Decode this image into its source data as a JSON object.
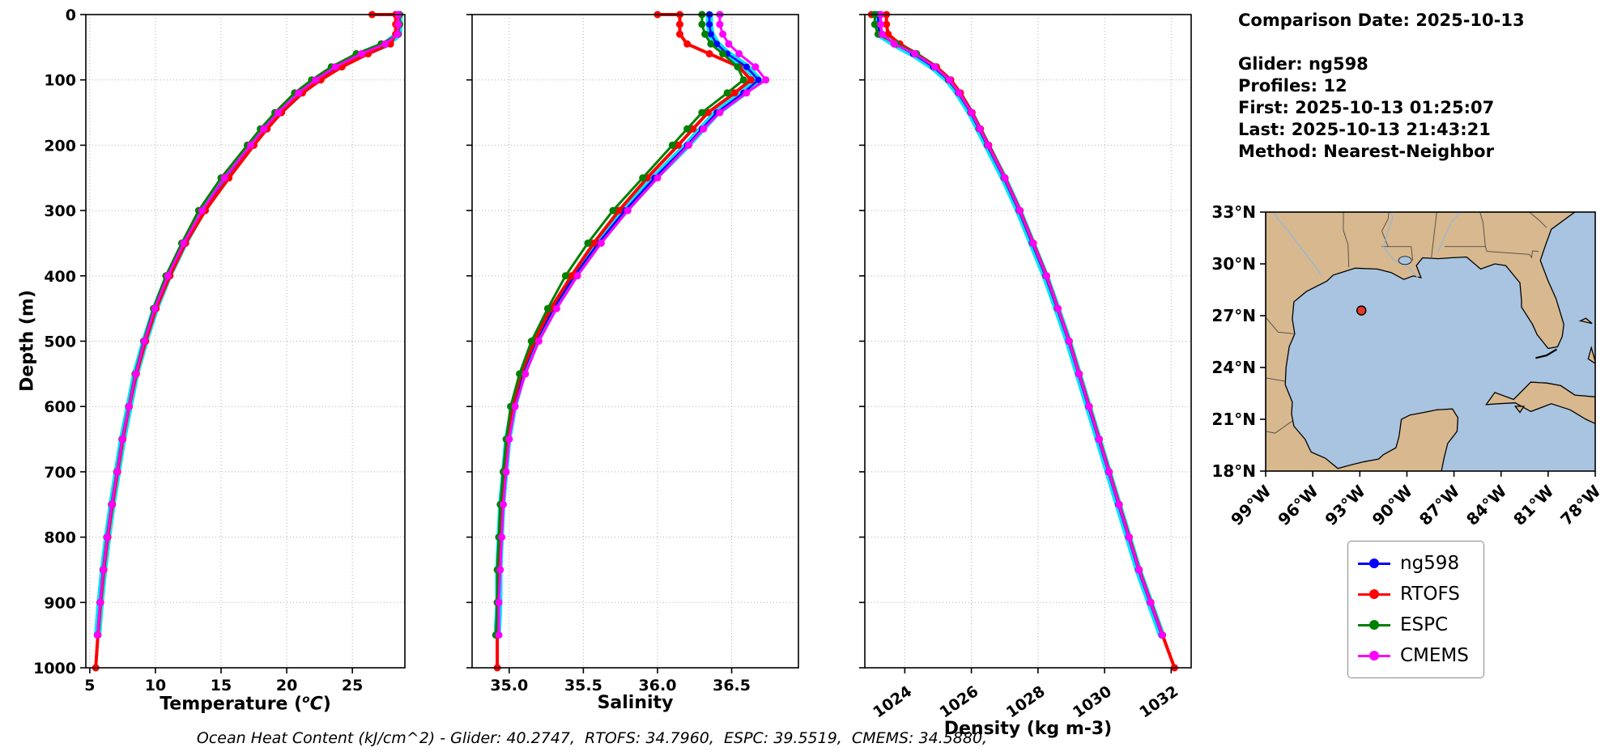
{
  "info_panel": {
    "comparison_date": "Comparison Date: 2025-10-13",
    "glider": "Glider: ng598",
    "profiles": "Profiles: 12",
    "first": "First: 2025-10-13 01:25:07",
    "last": "Last: 2025-10-13 21:43:21",
    "method": "Method: Nearest-Neighbor"
  },
  "labels": {
    "ylabel": "Depth (m)",
    "temperature_pre": "Temperature (",
    "temperature_sup": "o",
    "temperature_c": "C",
    "temperature_post": ")",
    "salinity_xlabel": "Salinity",
    "density_xlabel": "Density (kg m-3)"
  },
  "caption": "Ocean Heat Content (kJ/cm^2) - Glider: 40.2747,  RTOFS: 34.7960,  ESPC: 39.5519,  CMEMS: 34.5880,",
  "ocean_heat_content": {
    "units": "kJ/cm^2",
    "glider": 40.2747,
    "rtofs": 34.796,
    "espc": 39.5519,
    "cmems": 34.588
  },
  "legend": {
    "items": [
      {
        "label": "ng598",
        "color": "#0000ff"
      },
      {
        "label": "RTOFS",
        "color": "#ff0000"
      },
      {
        "label": "ESPC",
        "color": "#008000"
      },
      {
        "label": "CMEMS",
        "color": "#ff00ff"
      }
    ]
  },
  "chart_data": {
    "type": "line",
    "orientation": "vertical-profile",
    "grid": true,
    "legend_position": "outside lower right",
    "ylabel": "Depth (m)",
    "ylim": [
      0,
      1000
    ],
    "yticks": [
      0,
      100,
      200,
      300,
      400,
      500,
      600,
      700,
      800,
      900,
      1000
    ],
    "depths_m": [
      0,
      0,
      15,
      30,
      45,
      60,
      80,
      100,
      120,
      150,
      175,
      200,
      250,
      300,
      350,
      400,
      450,
      500,
      550,
      600,
      650,
      700,
      750,
      800,
      850,
      900,
      950,
      1000
    ],
    "plots": [
      {
        "key": "temperature",
        "xlabel": "Temperature (°C)",
        "xlim": [
          4.7,
          29.0
        ],
        "xticks": [
          5,
          10,
          15,
          20,
          25
        ],
        "xtick_labels": [
          "5",
          "10",
          "15",
          "20",
          "25"
        ],
        "tick_rotation": 0
      },
      {
        "key": "salinity",
        "xlabel": "Salinity",
        "xlim": [
          34.75,
          36.95
        ],
        "xticks": [
          35.0,
          35.5,
          36.0,
          36.5
        ],
        "xtick_labels": [
          "35.0",
          "35.5",
          "36.0",
          "36.5"
        ],
        "tick_rotation": 0
      },
      {
        "key": "density",
        "xlabel": "Density (kg m-3)",
        "xlim": [
          1022.8,
          1032.6
        ],
        "xticks": [
          1024,
          1026,
          1028,
          1030,
          1032
        ],
        "xtick_labels": [
          "1024",
          "1026",
          "1028",
          "1030",
          "1032"
        ],
        "tick_rotation": -35
      }
    ],
    "series": [
      {
        "name": "ng598",
        "color": "#0000ff",
        "halo_color": "#00e5ff",
        "line_width": 2.5,
        "marker_size": 4,
        "values": {
          "temperature": [
            28.55,
            28.55,
            28.55,
            28.5,
            27.6,
            25.8,
            23.8,
            22.3,
            21.0,
            19.4,
            18.3,
            17.3,
            15.3,
            13.6,
            12.2,
            11.0,
            10.0,
            9.2,
            8.5,
            8.0,
            7.5,
            7.1,
            6.7,
            6.35,
            6.05,
            5.8,
            5.6,
            null
          ],
          "salinity": [
            36.35,
            36.35,
            36.35,
            36.36,
            36.4,
            36.47,
            36.6,
            36.68,
            36.58,
            36.4,
            36.3,
            36.2,
            35.98,
            35.78,
            35.6,
            35.44,
            35.3,
            35.18,
            35.09,
            35.03,
            34.99,
            34.97,
            34.95,
            34.94,
            34.93,
            34.93,
            34.92,
            null
          ],
          "density": [
            1023.2,
            1023.2,
            1023.2,
            1023.25,
            1023.7,
            1024.25,
            1024.85,
            1025.3,
            1025.6,
            1025.97,
            1026.22,
            1026.47,
            1026.97,
            1027.42,
            1027.82,
            1028.22,
            1028.57,
            1028.91,
            1029.21,
            1029.51,
            1029.81,
            1030.11,
            1030.41,
            1030.71,
            1031.01,
            1031.36,
            1031.71,
            null
          ]
        }
      },
      {
        "name": "RTOFS",
        "color": "#ff0000",
        "line_width": 4,
        "marker_size": 4.5,
        "values": {
          "temperature": [
            26.5,
            28.3,
            28.3,
            28.3,
            27.9,
            26.2,
            24.2,
            22.6,
            21.2,
            19.6,
            18.5,
            17.5,
            15.6,
            13.8,
            12.3,
            11.1,
            10.05,
            9.25,
            8.55,
            8.0,
            7.52,
            7.12,
            6.72,
            6.37,
            6.07,
            5.82,
            5.62,
            5.45
          ],
          "salinity": [
            36.0,
            36.15,
            36.15,
            36.15,
            36.2,
            36.35,
            36.55,
            36.63,
            36.52,
            36.34,
            36.24,
            36.14,
            35.93,
            35.74,
            35.57,
            35.42,
            35.28,
            35.17,
            35.08,
            35.02,
            34.99,
            34.96,
            34.95,
            34.94,
            34.93,
            34.92,
            34.92,
            34.92
          ],
          "density": [
            1023.0,
            1023.45,
            1023.45,
            1023.5,
            1023.85,
            1024.35,
            1024.95,
            1025.38,
            1025.67,
            1026.02,
            1026.27,
            1026.52,
            1027.01,
            1027.46,
            1027.86,
            1028.26,
            1028.6,
            1028.94,
            1029.24,
            1029.54,
            1029.84,
            1030.14,
            1030.44,
            1030.74,
            1031.04,
            1031.39,
            1031.74,
            1032.1
          ]
        }
      },
      {
        "name": "ESPC",
        "color": "#008000",
        "line_width": 3,
        "marker_size": 4.5,
        "values": {
          "temperature": [
            28.6,
            28.6,
            28.6,
            28.5,
            27.2,
            25.3,
            23.4,
            21.9,
            20.6,
            19.1,
            18.0,
            17.0,
            15.0,
            13.3,
            12.0,
            10.8,
            9.85,
            9.1,
            8.45,
            7.95,
            7.45,
            7.05,
            6.65,
            6.3,
            6.0,
            5.78,
            5.58,
            null
          ],
          "salinity": [
            36.3,
            36.3,
            36.3,
            36.32,
            36.36,
            36.44,
            36.54,
            36.58,
            36.47,
            36.3,
            36.2,
            36.1,
            35.9,
            35.7,
            35.53,
            35.38,
            35.26,
            35.15,
            35.07,
            35.01,
            34.98,
            34.96,
            34.94,
            34.93,
            34.92,
            34.92,
            34.91,
            null
          ],
          "density": [
            1023.1,
            1023.1,
            1023.1,
            1023.2,
            1023.75,
            1024.35,
            1024.9,
            1025.32,
            1025.62,
            1025.99,
            1026.24,
            1026.49,
            1026.99,
            1027.44,
            1027.84,
            1028.24,
            1028.59,
            1028.93,
            1029.23,
            1029.53,
            1029.83,
            1030.13,
            1030.43,
            1030.73,
            1031.03,
            1031.38,
            1031.73,
            null
          ]
        }
      },
      {
        "name": "CMEMS",
        "color": "#ff00ff",
        "line_width": 3,
        "marker_size": 4.5,
        "values": {
          "temperature": [
            28.5,
            28.5,
            28.5,
            28.45,
            27.5,
            25.7,
            23.7,
            22.2,
            20.9,
            19.35,
            18.25,
            17.25,
            15.25,
            13.55,
            12.15,
            10.95,
            9.95,
            9.15,
            8.5,
            7.98,
            7.48,
            7.08,
            6.68,
            6.33,
            6.03,
            5.79,
            5.59,
            null
          ],
          "salinity": [
            36.42,
            36.42,
            36.42,
            36.44,
            36.48,
            36.55,
            36.66,
            36.73,
            36.6,
            36.42,
            36.31,
            36.21,
            36.0,
            35.8,
            35.62,
            35.46,
            35.32,
            35.2,
            35.11,
            35.04,
            35.0,
            34.98,
            34.96,
            34.95,
            34.94,
            34.93,
            34.93,
            null
          ],
          "density": [
            1023.28,
            1023.28,
            1023.28,
            1023.32,
            1023.68,
            1024.3,
            1024.9,
            1025.34,
            1025.63,
            1026.0,
            1026.25,
            1026.5,
            1027.0,
            1027.45,
            1027.85,
            1028.25,
            1028.6,
            1028.93,
            1029.23,
            1029.53,
            1029.83,
            1030.13,
            1030.43,
            1030.73,
            1031.03,
            1031.38,
            1031.73,
            null
          ]
        }
      }
    ]
  },
  "map": {
    "extent": {
      "lon_min": -99,
      "lon_max": -78,
      "lat_min": 18,
      "lat_max": 33
    },
    "lon_ticks": [
      -99,
      -96,
      -93,
      -90,
      -87,
      -84,
      -81,
      -78
    ],
    "lon_tick_labels": [
      "99°W",
      "96°W",
      "93°W",
      "90°W",
      "87°W",
      "84°W",
      "81°W",
      "78°W"
    ],
    "lat_ticks": [
      33,
      30,
      27,
      24,
      21,
      18
    ],
    "lat_tick_labels": [
      "33°N",
      "30°N",
      "27°N",
      "24°N",
      "21°N",
      "18°N"
    ],
    "glider_marker": {
      "lon": -92.9,
      "lat": 27.3,
      "color": "#e8382a"
    },
    "land_color": "#d8b88e",
    "ocean_color": "#a8c4e0"
  }
}
